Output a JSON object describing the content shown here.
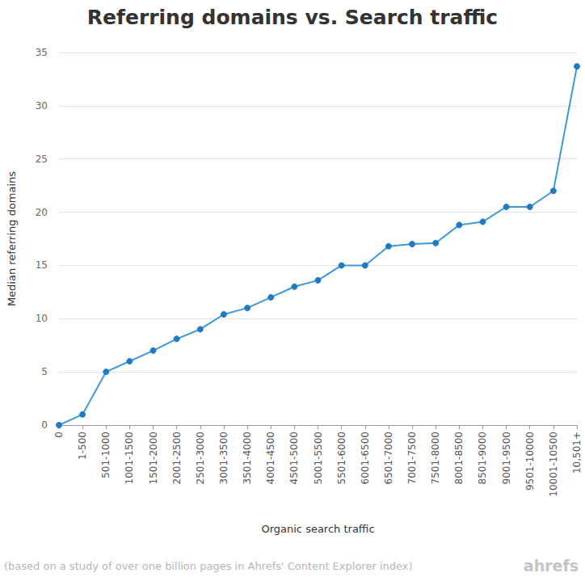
{
  "chart_data": {
    "type": "line",
    "title": "Referring domains vs. Search traffic",
    "x_label": "Organic search traffic",
    "y_label": "Median referring domains",
    "annotations": [
      "(based on a study of over one billion pages in Ahrefs' Content Explorer index)",
      "ahrefs"
    ],
    "categories": [
      "0",
      "1-500",
      "501-1000",
      "1001-1500",
      "1501-2000",
      "2001-2500",
      "2501-3000",
      "3001-3500",
      "3501-4000",
      "4001-4500",
      "4501-5000",
      "5001-5500",
      "5501-6000",
      "6001-6500",
      "6501-7000",
      "7001-7500",
      "7501-8000",
      "8001-8500",
      "8501-9000",
      "9001-9500",
      "9501-10000",
      "10001-10500",
      "10,501+"
    ],
    "values": [
      0,
      1,
      5,
      6,
      7,
      8.1,
      9,
      10.4,
      11,
      12,
      13,
      13.6,
      15,
      15,
      16.8,
      17,
      17.1,
      18.8,
      19.1,
      20.5,
      20.5,
      22,
      33.7
    ],
    "color": "#3d9ad9",
    "marker": "circle",
    "ylim": [
      0,
      35
    ],
    "yticks": [
      0,
      5,
      10,
      15,
      20,
      25,
      30,
      35
    ],
    "grid": true
  }
}
